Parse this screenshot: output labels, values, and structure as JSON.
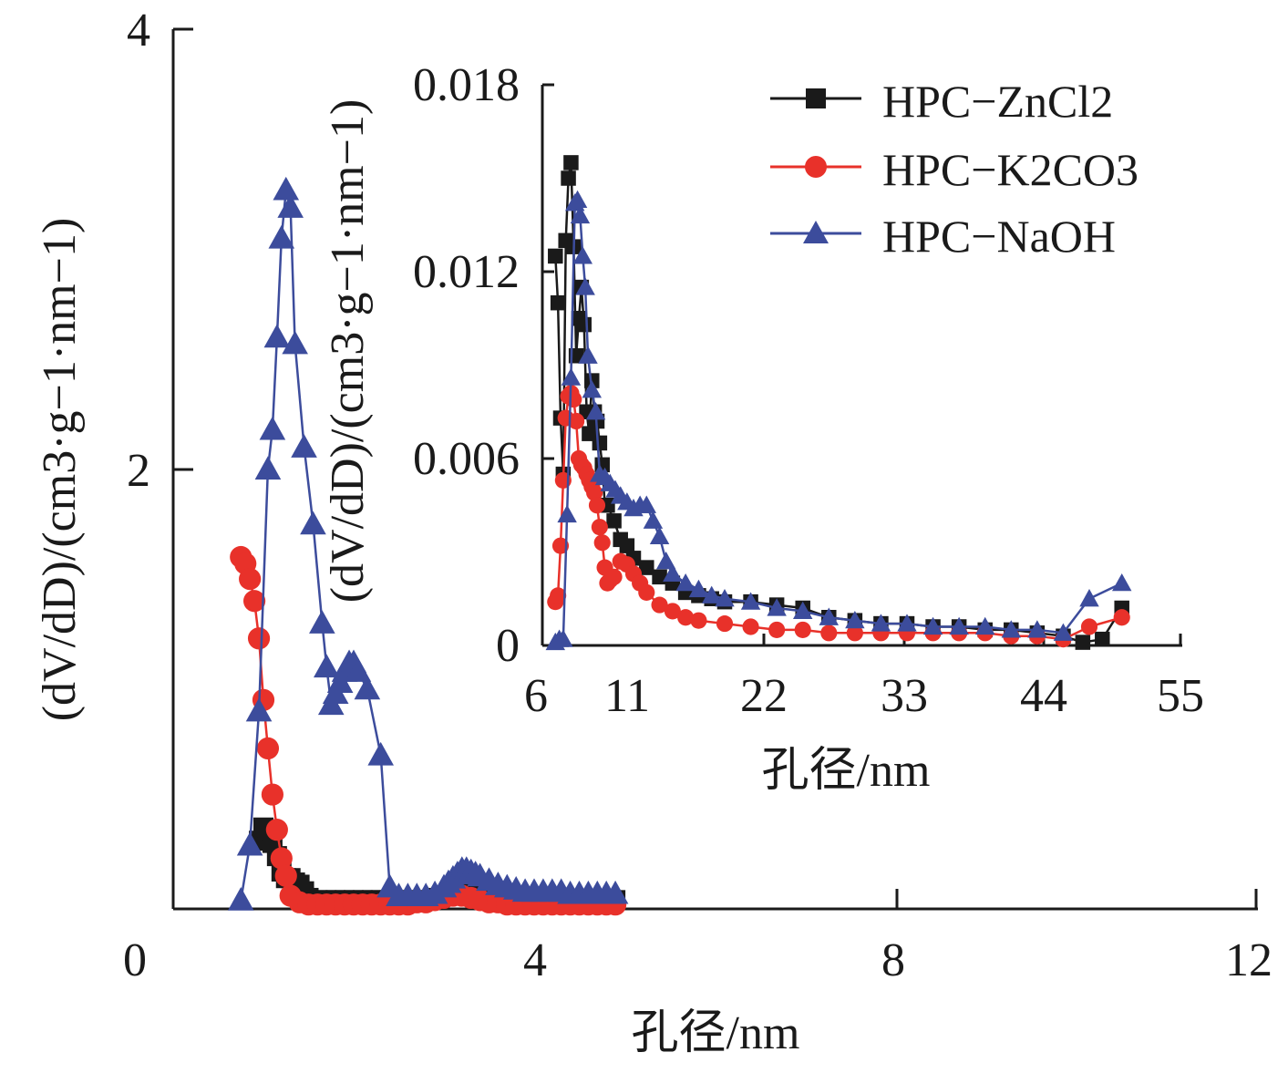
{
  "chart_data": [
    {
      "type": "line",
      "xlabel": "孔径/nm",
      "ylabel": "(dV/dD)/(cm3·g−1·nm−1)",
      "xlim": [
        0,
        12
      ],
      "ylim": [
        0,
        4
      ],
      "xticks": [
        "0",
        "4",
        "8",
        "12"
      ],
      "yticks": [
        "4",
        "2"
      ],
      "series": [
        {
          "name": "HPC−ZnCl2",
          "color": "#1a1a1a",
          "marker": "square",
          "x": [
            0.95,
            1.0,
            1.05,
            1.1,
            1.15,
            1.2,
            1.25,
            1.3,
            1.35,
            1.4,
            1.45,
            1.5,
            1.6,
            1.7,
            1.8,
            1.9,
            2.0,
            2.1,
            2.2,
            2.3,
            2.4,
            2.5,
            2.6,
            2.7,
            2.8,
            2.9,
            3.0,
            3.1,
            3.2,
            3.3,
            3.4,
            3.5,
            3.6,
            3.7,
            3.8,
            3.9,
            4.0,
            4.1,
            4.2,
            4.3,
            4.4,
            4.5,
            4.6,
            4.7,
            4.8,
            4.9
          ],
          "y": [
            0.31,
            0.37,
            0.36,
            0.3,
            0.24,
            0.17,
            0.14,
            0.14,
            0.12,
            0.11,
            0.08,
            0.05,
            0.04,
            0.04,
            0.04,
            0.04,
            0.04,
            0.04,
            0.04,
            0.04,
            0.04,
            0.04,
            0.04,
            0.04,
            0.04,
            0.05,
            0.06,
            0.07,
            0.08,
            0.09,
            0.09,
            0.08,
            0.07,
            0.05,
            0.04,
            0.04,
            0.04,
            0.04,
            0.04,
            0.04,
            0.04,
            0.04,
            0.04,
            0.04,
            0.04,
            0.04
          ]
        },
        {
          "name": "HPC−K2CO3",
          "color": "#e8312a",
          "marker": "circle",
          "x": [
            0.75,
            0.8,
            0.85,
            0.9,
            0.95,
            1.0,
            1.05,
            1.1,
            1.15,
            1.2,
            1.25,
            1.3,
            1.4,
            1.5,
            1.6,
            1.7,
            1.8,
            1.9,
            2.0,
            2.1,
            2.2,
            2.3,
            2.4,
            2.5,
            2.6,
            2.7,
            2.8,
            2.9,
            3.0,
            3.1,
            3.2,
            3.3,
            3.4,
            3.5,
            3.6,
            3.7,
            3.8,
            3.9,
            4.0,
            4.1,
            4.2,
            4.3,
            4.4,
            4.5,
            4.6,
            4.7,
            4.8,
            4.9
          ],
          "y": [
            1.6,
            1.57,
            1.5,
            1.4,
            1.23,
            0.95,
            0.73,
            0.52,
            0.36,
            0.23,
            0.15,
            0.06,
            0.03,
            0.02,
            0.02,
            0.02,
            0.02,
            0.02,
            0.02,
            0.02,
            0.02,
            0.02,
            0.02,
            0.02,
            0.02,
            0.03,
            0.03,
            0.04,
            0.05,
            0.06,
            0.06,
            0.05,
            0.04,
            0.03,
            0.03,
            0.02,
            0.02,
            0.02,
            0.02,
            0.02,
            0.02,
            0.02,
            0.02,
            0.02,
            0.02,
            0.02,
            0.02,
            0.02
          ]
        },
        {
          "name": "HPC−NaOH",
          "color": "#3c4c9c",
          "marker": "triangle",
          "x": [
            0.75,
            0.85,
            0.95,
            1.05,
            1.1,
            1.15,
            1.2,
            1.25,
            1.3,
            1.35,
            1.45,
            1.55,
            1.65,
            1.7,
            1.75,
            1.8,
            1.85,
            1.9,
            1.95,
            2.0,
            2.05,
            2.15,
            2.3,
            2.4,
            2.5,
            2.6,
            2.7,
            2.8,
            2.9,
            3.0,
            3.05,
            3.1,
            3.15,
            3.2,
            3.25,
            3.3,
            3.35,
            3.4,
            3.5,
            3.6,
            3.7,
            3.8,
            3.9,
            4.0,
            4.1,
            4.2,
            4.3,
            4.4,
            4.5,
            4.6,
            4.7,
            4.8,
            4.9
          ],
          "y": [
            0.04,
            0.29,
            0.9,
            2.0,
            2.18,
            2.6,
            3.05,
            3.27,
            3.19,
            2.57,
            2.1,
            1.75,
            1.3,
            1.1,
            0.93,
            0.98,
            1.03,
            1.08,
            1.12,
            1.12,
            1.08,
            1.0,
            0.7,
            0.1,
            0.06,
            0.06,
            0.06,
            0.06,
            0.07,
            0.1,
            0.12,
            0.14,
            0.16,
            0.18,
            0.18,
            0.17,
            0.16,
            0.15,
            0.13,
            0.11,
            0.1,
            0.09,
            0.08,
            0.08,
            0.08,
            0.08,
            0.08,
            0.07,
            0.07,
            0.07,
            0.07,
            0.07,
            0.07
          ]
        }
      ]
    },
    {
      "type": "line",
      "xlabel": "孔径/nm",
      "ylabel": "(dV/dD)/(cm3·g−1·nm−1)",
      "xlim": [
        6,
        55
      ],
      "ylim": [
        0,
        0.018
      ],
      "xticks": [
        "6",
        "11",
        "22",
        "33",
        "44",
        "55"
      ],
      "yticks": [
        "0.018",
        "0.012",
        "0.006",
        "0"
      ],
      "series": [
        {
          "name": "HPC−ZnCl2",
          "color": "#1a1a1a",
          "marker": "square",
          "x": [
            7.0,
            7.2,
            7.4,
            7.6,
            7.8,
            8.0,
            8.2,
            8.4,
            8.6,
            8.8,
            9.0,
            9.2,
            9.4,
            9.6,
            9.8,
            10.0,
            10.2,
            10.4,
            10.6,
            10.8,
            11.0,
            11.5,
            12.0,
            12.5,
            13.0,
            14.0,
            15.0,
            16.0,
            17.0,
            18.0,
            19.0,
            20.0,
            22.0,
            24.0,
            26.0,
            28.0,
            30.0,
            32.0,
            34.0,
            36.0,
            38.0,
            40.0,
            42.0,
            44.0,
            46.0,
            47.5,
            49.0,
            50.5
          ],
          "y": [
            0.0125,
            0.011,
            0.0073,
            0.0055,
            0.013,
            0.015,
            0.0155,
            0.0128,
            0.0093,
            0.0105,
            0.0115,
            0.0103,
            0.0075,
            0.0068,
            0.0085,
            0.0075,
            0.0072,
            0.0065,
            0.0058,
            0.0045,
            0.0045,
            0.004,
            0.0034,
            0.0032,
            0.0028,
            0.0025,
            0.0022,
            0.002,
            0.0017,
            0.0016,
            0.0015,
            0.0014,
            0.0014,
            0.0013,
            0.0012,
            0.0009,
            0.0008,
            0.0007,
            0.0007,
            0.0006,
            0.0006,
            0.0005,
            0.0005,
            0.0004,
            0.0003,
            0.0001,
            0.0002,
            0.0012
          ]
        },
        {
          "name": "HPC−K2CO3",
          "color": "#e8312a",
          "marker": "circle",
          "x": [
            7.0,
            7.2,
            7.4,
            7.6,
            7.8,
            8.0,
            8.2,
            8.4,
            8.6,
            8.8,
            9.0,
            9.2,
            9.4,
            9.6,
            9.8,
            10.0,
            10.2,
            10.4,
            10.6,
            10.8,
            11.0,
            11.2,
            11.5,
            12.0,
            12.5,
            13.0,
            13.5,
            14.0,
            15.0,
            16.0,
            17.0,
            18.0,
            20.0,
            22.0,
            24.0,
            26.0,
            28.0,
            30.0,
            32.0,
            34.0,
            36.0,
            38.0,
            40.0,
            42.0,
            44.0,
            46.0,
            48.0,
            50.5
          ],
          "y": [
            0.0014,
            0.0016,
            0.0032,
            0.0053,
            0.0073,
            0.008,
            0.0081,
            0.0079,
            0.0072,
            0.006,
            0.0058,
            0.0057,
            0.0055,
            0.0053,
            0.0051,
            0.0049,
            0.0045,
            0.0038,
            0.0033,
            0.0025,
            0.002,
            0.0021,
            0.0022,
            0.0027,
            0.0026,
            0.0023,
            0.002,
            0.0017,
            0.0013,
            0.0011,
            0.0009,
            0.0008,
            0.0007,
            0.0006,
            0.0005,
            0.0005,
            0.0004,
            0.0004,
            0.0004,
            0.0004,
            0.0004,
            0.0004,
            0.0004,
            0.0003,
            0.0003,
            0.0002,
            0.0006,
            0.0009
          ]
        },
        {
          "name": "HPC−NaOH",
          "color": "#3c4c9c",
          "marker": "triangle",
          "x": [
            7.0,
            7.3,
            7.6,
            7.9,
            8.2,
            8.5,
            8.7,
            8.9,
            9.1,
            9.3,
            9.5,
            9.8,
            10.1,
            10.4,
            10.8,
            11.2,
            11.6,
            12.0,
            12.5,
            13.0,
            13.5,
            14.0,
            14.5,
            15.0,
            15.5,
            16.0,
            17.0,
            18.0,
            19.0,
            20.0,
            22.0,
            24.0,
            26.0,
            28.0,
            30.0,
            32.0,
            34.0,
            36.0,
            38.0,
            40.0,
            42.0,
            44.0,
            46.0,
            48.0,
            50.5
          ],
          "y": [
            0.0001,
            0.0002,
            0.0002,
            0.0042,
            0.0086,
            0.0142,
            0.0143,
            0.0138,
            0.0125,
            0.0115,
            0.0093,
            0.0082,
            0.0075,
            0.0055,
            0.0054,
            0.0052,
            0.005,
            0.0048,
            0.0046,
            0.0044,
            0.0045,
            0.0045,
            0.004,
            0.0035,
            0.0027,
            0.0023,
            0.002,
            0.0018,
            0.0016,
            0.0015,
            0.0014,
            0.0012,
            0.0011,
            0.0009,
            0.0008,
            0.0007,
            0.0007,
            0.0006,
            0.0006,
            0.0006,
            0.0005,
            0.0005,
            0.0004,
            0.0015,
            0.002
          ]
        }
      ]
    }
  ]
}
